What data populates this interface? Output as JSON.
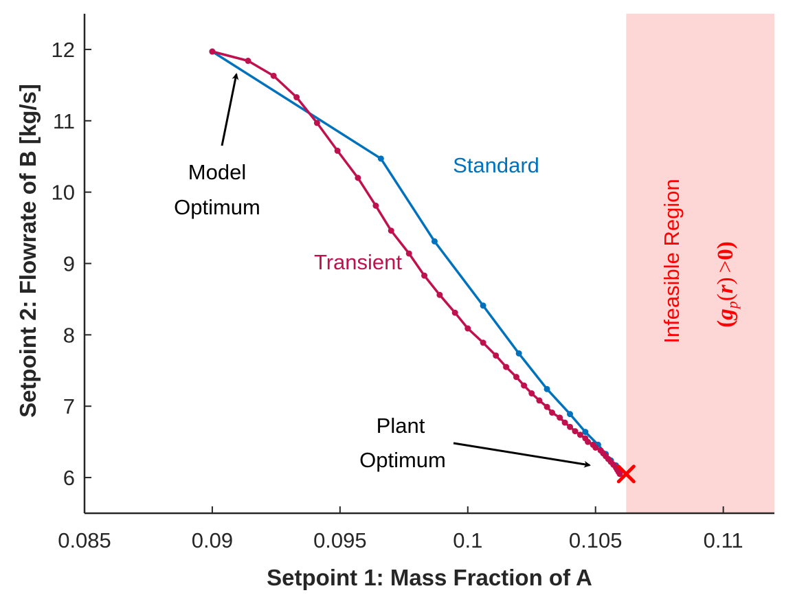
{
  "chart_data": {
    "type": "line",
    "xlabel": "Setpoint 1: Mass Fraction of A",
    "ylabel": "Setpoint 2: Flowrate of B [kg/s]",
    "xlim": [
      0.085,
      0.112
    ],
    "ylim": [
      5.5,
      12.5
    ],
    "xticks": [
      0.085,
      0.09,
      0.095,
      0.1,
      0.105,
      0.11
    ],
    "xtick_labels": [
      "0.085",
      "0.09",
      "0.095",
      "0.1",
      "0.105",
      "0.11"
    ],
    "yticks": [
      6,
      7,
      8,
      9,
      10,
      11,
      12
    ],
    "ytick_labels": [
      "6",
      "7",
      "8",
      "9",
      "10",
      "11",
      "12"
    ],
    "grid": false,
    "series": [
      {
        "name": "Standard",
        "color": "#0072BD",
        "x": [
          0.09,
          0.0966,
          0.0987,
          0.1006,
          0.102,
          0.1031,
          0.104,
          0.1046,
          0.1051,
          0.1054,
          0.1056,
          0.1058,
          0.1059,
          0.10595
        ],
        "y": [
          11.97,
          10.47,
          9.31,
          8.41,
          7.74,
          7.24,
          6.89,
          6.64,
          6.46,
          6.33,
          6.24,
          6.17,
          6.13,
          6.1
        ]
      },
      {
        "name": "Transient",
        "color": "#C0114F",
        "x": [
          0.09,
          0.0914,
          0.0924,
          0.0933,
          0.0941,
          0.0949,
          0.0957,
          0.0964,
          0.097,
          0.0977,
          0.0983,
          0.0989,
          0.0995,
          0.1,
          0.1006,
          0.1011,
          0.1015,
          0.1019,
          0.1022,
          0.1025,
          0.1028,
          0.1031,
          0.1033,
          0.1036,
          0.1038,
          0.104,
          0.1042,
          0.1044,
          0.1046,
          0.1047,
          0.1049,
          0.105,
          0.1052,
          0.1053,
          0.1054,
          0.1055,
          0.1056,
          0.1057,
          0.1058,
          0.10585,
          0.1059,
          0.10595
        ],
        "y": [
          11.97,
          11.84,
          11.63,
          11.33,
          10.97,
          10.58,
          10.2,
          9.81,
          9.46,
          9.14,
          8.83,
          8.56,
          8.31,
          8.09,
          7.89,
          7.71,
          7.55,
          7.41,
          7.29,
          7.18,
          7.08,
          6.99,
          6.91,
          6.84,
          6.77,
          6.71,
          6.65,
          6.6,
          6.55,
          6.5,
          6.46,
          6.42,
          6.38,
          6.34,
          6.3,
          6.26,
          6.22,
          6.18,
          6.14,
          6.11,
          6.08,
          6.05
        ]
      }
    ],
    "plant_optimum": {
      "x": 0.1062,
      "y": 6.05,
      "marker": "×",
      "color": "#FF0000"
    },
    "infeasible_region": {
      "x_from": 0.1062,
      "x_to": 0.112,
      "color": "#FDD6D6"
    },
    "annotations": {
      "standard": "Standard",
      "transient": "Transient",
      "model_optimum": [
        "Model",
        "Optimum"
      ],
      "plant_optimum": [
        "Plant",
        "Optimum"
      ],
      "region_title": "Infeasible Region",
      "region_condition": "(gp(r) >0)"
    },
    "colors": {
      "standard": "#0072BD",
      "transient": "#C0114F",
      "infeasible_text": "#FF0000",
      "axis": "#262626"
    }
  }
}
